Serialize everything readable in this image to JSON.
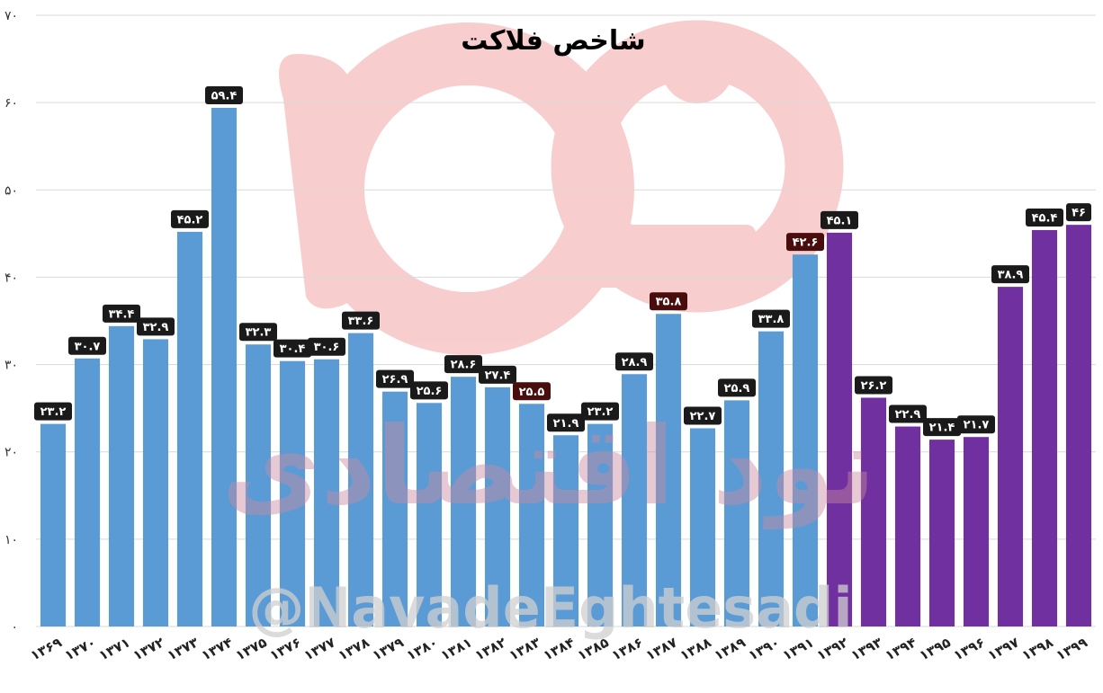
{
  "colors": {
    "bar_primary": "#5b9bd5",
    "bar_secondary": "#7030a0",
    "label_bg": "#1a1a1a",
    "label_bg_highlight": "#4a0d0d",
    "grid": "#d9d9d9",
    "watermark_logo": "#f4a6a6"
  },
  "watermark": {
    "handle": "@NavadeEghtesadi",
    "logo_text": "نود اقتصادی"
  },
  "chart_data": {
    "type": "bar",
    "title": "شاخص فلاکت",
    "xlabel": "",
    "ylabel": "",
    "ylim": [
      0,
      70
    ],
    "yticks": [
      {
        "value": 0,
        "label": "۰"
      },
      {
        "value": 10,
        "label": "۱۰"
      },
      {
        "value": 20,
        "label": "۲۰"
      },
      {
        "value": 30,
        "label": "۳۰"
      },
      {
        "value": 40,
        "label": "۴۰"
      },
      {
        "value": 50,
        "label": "۵۰"
      },
      {
        "value": 60,
        "label": "۶۰"
      },
      {
        "value": 70,
        "label": "۷۰"
      }
    ],
    "grid": true,
    "legend": "none",
    "categories": [
      "۱۳۶۹",
      "۱۳۷۰",
      "۱۳۷۱",
      "۱۳۷۲",
      "۱۳۷۳",
      "۱۳۷۴",
      "۱۳۷۵",
      "۱۳۷۶",
      "۱۳۷۷",
      "۱۳۷۸",
      "۱۳۷۹",
      "۱۳۸۰",
      "۱۳۸۱",
      "۱۳۸۲",
      "۱۳۸۳",
      "۱۳۸۴",
      "۱۳۸۵",
      "۱۳۸۶",
      "۱۳۸۷",
      "۱۳۸۸",
      "۱۳۸۹",
      "۱۳۹۰",
      "۱۳۹۱",
      "۱۳۹۲",
      "۱۳۹۳",
      "۱۳۹۴",
      "۱۳۹۵",
      "۱۳۹۶",
      "۱۳۹۷",
      "۱۳۹۸",
      "۱۳۹۹"
    ],
    "values": [
      23.2,
      30.7,
      34.4,
      32.9,
      45.2,
      59.4,
      32.3,
      30.4,
      30.6,
      33.6,
      26.9,
      25.6,
      28.6,
      27.4,
      25.5,
      21.9,
      23.2,
      28.9,
      35.8,
      22.7,
      25.9,
      33.8,
      42.6,
      45.1,
      26.2,
      22.9,
      21.4,
      21.7,
      38.9,
      45.4,
      46
    ],
    "data_labels": [
      "۲۳.۲",
      "۳۰.۷",
      "۳۴.۴",
      "۳۲.۹",
      "۴۵.۲",
      "۵۹.۴",
      "۳۲.۳",
      "۳۰.۴",
      "۳۰.۶",
      "۳۳.۶",
      "۲۶.۹",
      "۲۵.۶",
      "۲۸.۶",
      "۲۷.۴",
      "۲۵.۵",
      "۲۱.۹",
      "۲۳.۲",
      "۲۸.۹",
      "۳۵.۸",
      "۲۲.۷",
      "۲۵.۹",
      "۳۳.۸",
      "۴۲.۶",
      "۴۵.۱",
      "۲۶.۲",
      "۲۲.۹",
      "۲۱.۴",
      "۲۱.۷",
      "۳۸.۹",
      "۴۵.۴",
      "۴۶"
    ],
    "secondary_color_from_category": "۱۳۹۲",
    "highlighted_labels": [
      "۱۳۸۳",
      "۱۳۸۷",
      "۱۳۹۱"
    ]
  }
}
